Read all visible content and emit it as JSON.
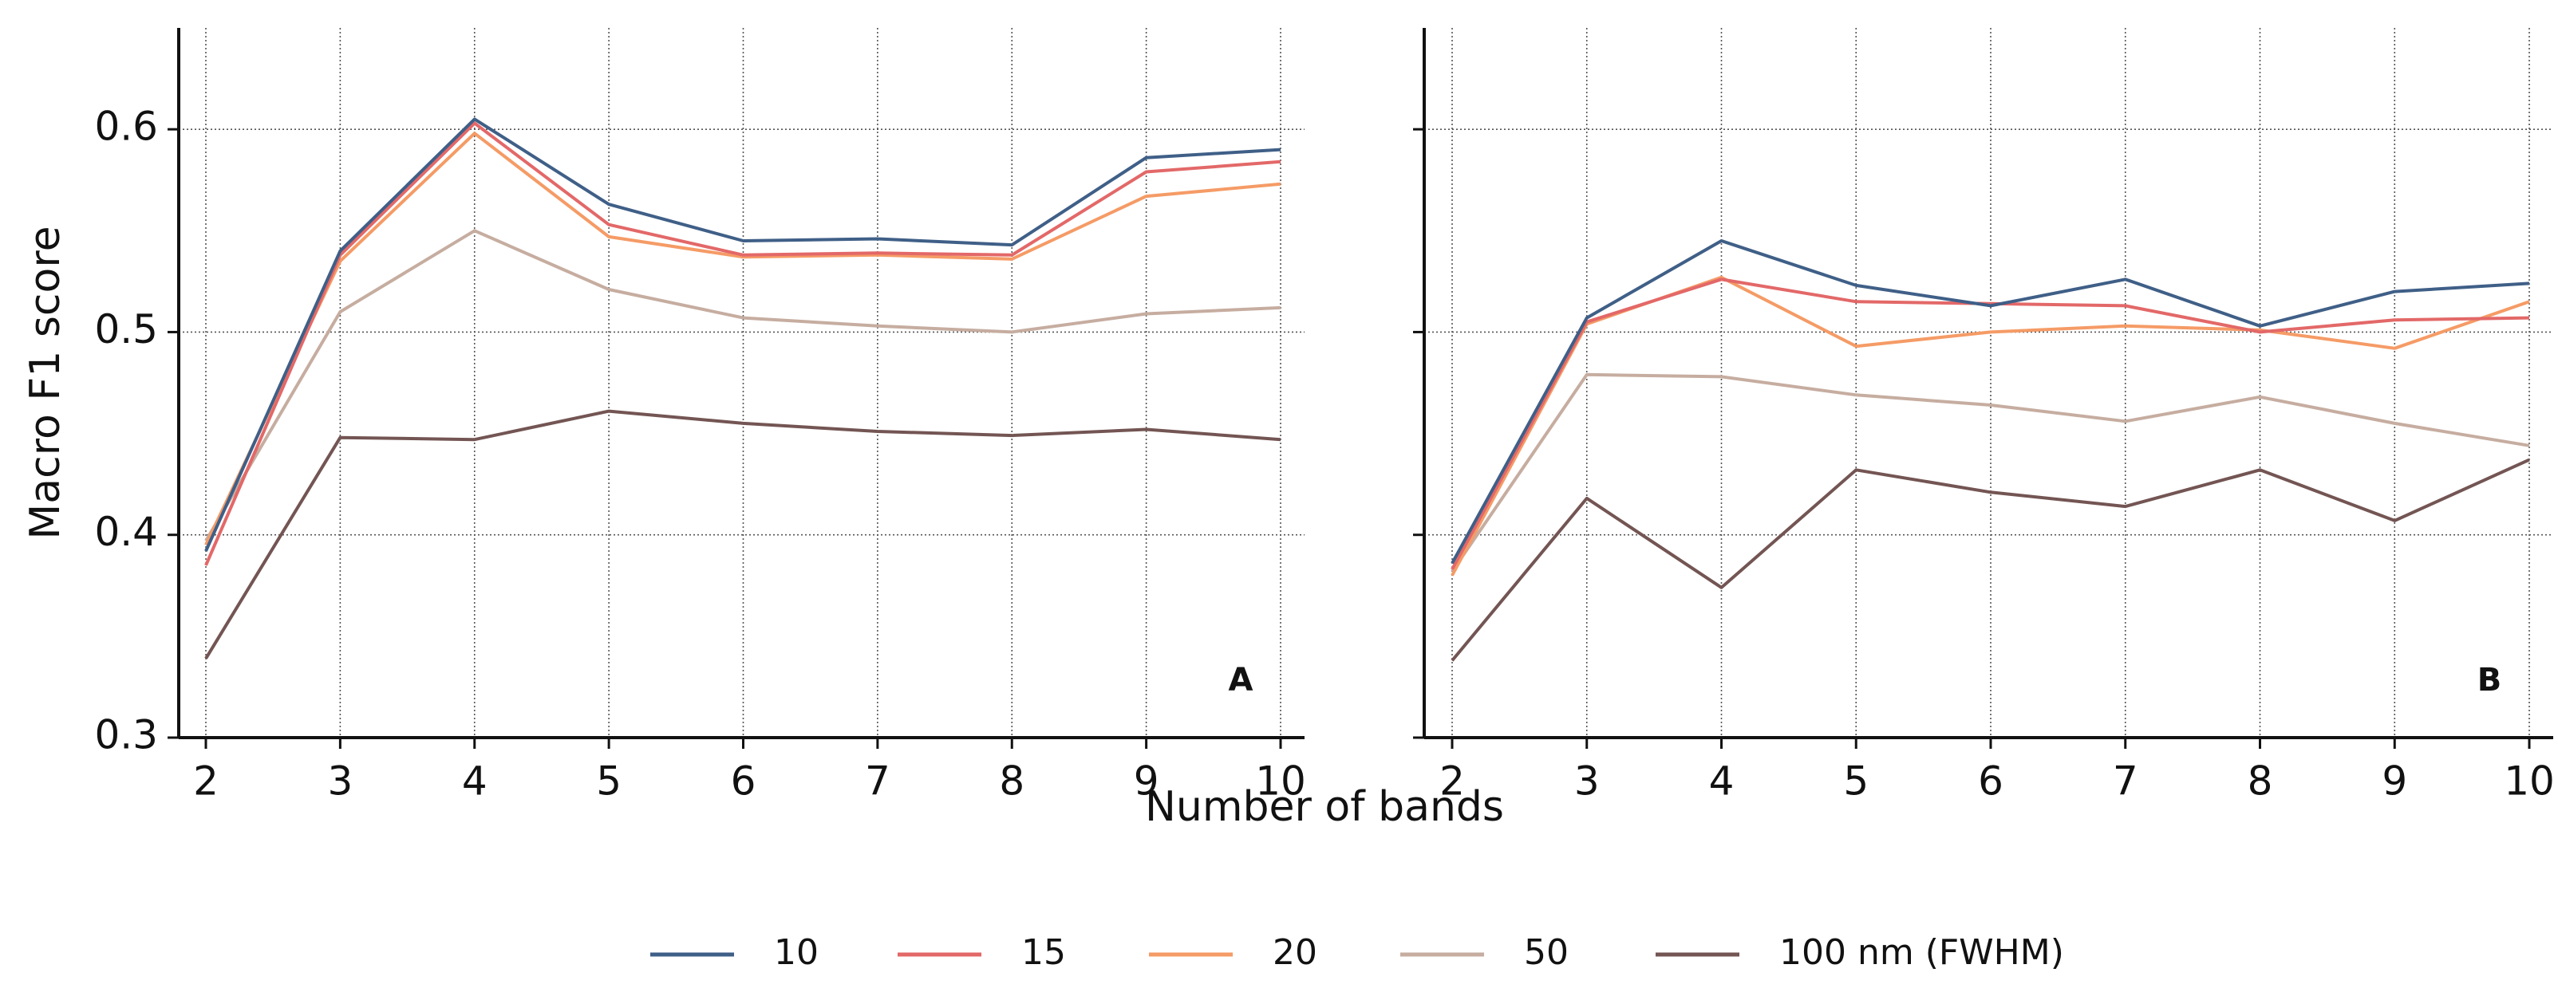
{
  "chart_data": {
    "type": "line",
    "ylabel": "Macro F1 score",
    "xlabel": "Number of bands",
    "x": [
      2,
      3,
      4,
      5,
      6,
      7,
      8,
      9,
      10
    ],
    "xticks": [
      "2",
      "3",
      "4",
      "5",
      "6",
      "7",
      "8",
      "9",
      "10"
    ],
    "ylim": [
      0.3,
      0.65
    ],
    "yticks": [
      "0.3",
      "0.4",
      "0.5",
      "0.6"
    ],
    "grid": true,
    "legend": {
      "placement": "bottom",
      "entries": [
        "10",
        "15",
        "20",
        "50",
        "100 nm (FWHM)"
      ]
    },
    "colors": {
      "10": "#3f5f87",
      "15": "#e36868",
      "20": "#f59b66",
      "50": "#c6ada0",
      "100": "#735553"
    },
    "panels": [
      {
        "label": "A",
        "series": [
          {
            "name": "10",
            "values": [
              0.392,
              0.54,
              0.605,
              0.563,
              0.545,
              0.546,
              0.543,
              0.586,
              0.59
            ]
          },
          {
            "name": "15",
            "values": [
              0.385,
              0.538,
              0.603,
              0.553,
              0.538,
              0.539,
              0.538,
              0.579,
              0.584
            ]
          },
          {
            "name": "20",
            "values": [
              0.395,
              0.535,
              0.598,
              0.547,
              0.537,
              0.538,
              0.536,
              0.567,
              0.573
            ]
          },
          {
            "name": "50",
            "values": [
              0.397,
              0.51,
              0.55,
              0.521,
              0.507,
              0.503,
              0.5,
              0.509,
              0.512
            ]
          },
          {
            "name": "100 nm (FWHM)",
            "values": [
              0.339,
              0.448,
              0.447,
              0.461,
              0.455,
              0.451,
              0.449,
              0.452,
              0.447
            ]
          }
        ]
      },
      {
        "label": "B",
        "series": [
          {
            "name": "10",
            "values": [
              0.386,
              0.507,
              0.545,
              0.523,
              0.513,
              0.526,
              0.503,
              0.52,
              0.524
            ]
          },
          {
            "name": "15",
            "values": [
              0.383,
              0.505,
              0.526,
              0.515,
              0.514,
              0.513,
              0.5,
              0.506,
              0.507
            ]
          },
          {
            "name": "20",
            "values": [
              0.38,
              0.504,
              0.527,
              0.493,
              0.5,
              0.503,
              0.501,
              0.492,
              0.515
            ]
          },
          {
            "name": "50",
            "values": [
              0.382,
              0.479,
              0.478,
              0.469,
              0.464,
              0.456,
              0.468,
              0.455,
              0.444
            ]
          },
          {
            "name": "100 nm (FWHM)",
            "values": [
              0.338,
              0.418,
              0.374,
              0.432,
              0.421,
              0.414,
              0.432,
              0.407,
              0.437
            ]
          }
        ]
      }
    ]
  }
}
